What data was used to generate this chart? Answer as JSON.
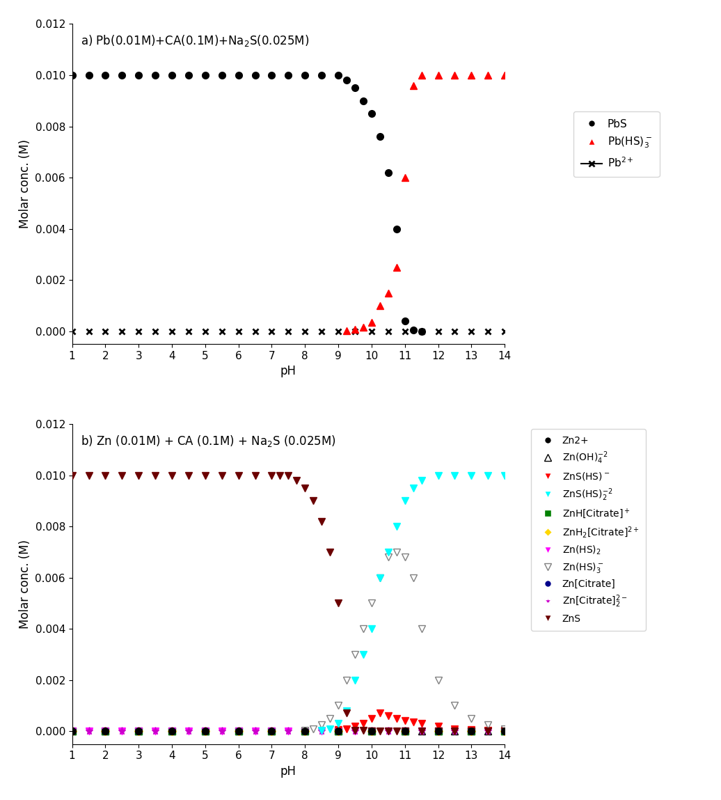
{
  "panel_a": {
    "PbS": {
      "ph": [
        1,
        1.5,
        2,
        2.5,
        3,
        3.5,
        4,
        4.5,
        5,
        5.5,
        6,
        6.5,
        7,
        7.5,
        8,
        8.5,
        9,
        9.25,
        9.5,
        9.75,
        10,
        10.25,
        10.5,
        10.75,
        11,
        11.25,
        11.5
      ],
      "val": [
        0.01,
        0.01,
        0.01,
        0.01,
        0.01,
        0.01,
        0.01,
        0.01,
        0.01,
        0.01,
        0.01,
        0.01,
        0.01,
        0.01,
        0.01,
        0.01,
        0.01,
        0.0098,
        0.0095,
        0.009,
        0.0085,
        0.0076,
        0.0062,
        0.004,
        0.0004,
        5e-05,
        0.0
      ]
    },
    "PbHS3": {
      "ph": [
        9.25,
        9.5,
        9.75,
        10,
        10.25,
        10.5,
        10.75,
        11,
        11.25,
        11.5,
        12,
        12.5,
        13,
        13.5,
        14
      ],
      "val": [
        3e-05,
        8e-05,
        0.00015,
        0.00035,
        0.001,
        0.0015,
        0.0025,
        0.006,
        0.0096,
        0.01,
        0.01,
        0.01,
        0.01,
        0.01,
        0.01
      ]
    },
    "Pb2": {
      "ph": [
        1,
        1.5,
        2,
        2.5,
        3,
        3.5,
        4,
        4.5,
        5,
        5.5,
        6,
        6.5,
        7,
        7.5,
        8,
        8.5,
        9,
        9.5,
        10,
        10.5,
        11,
        11.5,
        12,
        12.5,
        13,
        13.5,
        14
      ],
      "val": [
        0.0,
        0.0,
        0.0,
        0.0,
        0.0,
        0.0,
        0.0,
        0.0,
        0.0,
        0.0,
        0.0,
        0.0,
        0.0,
        0.0,
        0.0,
        0.0,
        0.0,
        0.0,
        0.0,
        0.0,
        0.0,
        0.0,
        0.0,
        0.0,
        0.0,
        0.0,
        0.0
      ]
    }
  },
  "panel_b": {
    "ZnS": {
      "ph": [
        1,
        1.5,
        2,
        2.5,
        3,
        3.5,
        4,
        4.5,
        5,
        5.5,
        6,
        6.5,
        7,
        7.25,
        7.5,
        7.75,
        8,
        8.25,
        8.5,
        8.75,
        9,
        9.25,
        9.5,
        9.75,
        10,
        10.25,
        10.5,
        10.75,
        11,
        11.5,
        12,
        12.5,
        13,
        13.5,
        14
      ],
      "val": [
        0.01,
        0.01,
        0.01,
        0.01,
        0.01,
        0.01,
        0.01,
        0.01,
        0.01,
        0.01,
        0.01,
        0.01,
        0.01,
        0.01,
        0.01,
        0.0098,
        0.0095,
        0.009,
        0.0082,
        0.007,
        0.005,
        0.0007,
        4e-05,
        2e-05,
        1e-05,
        1e-05,
        1e-05,
        1e-05,
        1e-05,
        1e-05,
        1e-05,
        1e-05,
        1e-05,
        1e-05,
        1e-05
      ]
    },
    "ZnSHS2": {
      "ph": [
        8.5,
        8.75,
        9,
        9.25,
        9.5,
        9.75,
        10,
        10.25,
        10.5,
        10.75,
        11,
        11.25,
        11.5,
        12,
        12.5,
        13,
        13.5,
        14
      ],
      "val": [
        2e-05,
        0.0001,
        0.0003,
        0.0008,
        0.002,
        0.003,
        0.004,
        0.006,
        0.007,
        0.008,
        0.009,
        0.0095,
        0.0098,
        0.01,
        0.01,
        0.01,
        0.01,
        0.01
      ]
    },
    "ZnSHS": {
      "ph": [
        9.0,
        9.25,
        9.5,
        9.75,
        10,
        10.25,
        10.5,
        10.75,
        11,
        11.25,
        11.5,
        12,
        12.5,
        13,
        13.5,
        14
      ],
      "val": [
        5e-05,
        0.0001,
        0.0002,
        0.0003,
        0.0005,
        0.0007,
        0.0006,
        0.0005,
        0.0004,
        0.00035,
        0.0003,
        0.0002,
        0.0001,
        5e-05,
        3e-05,
        2e-05
      ]
    },
    "ZnHS3": {
      "ph": [
        8.0,
        8.25,
        8.5,
        8.75,
        9,
        9.25,
        9.5,
        9.75,
        10,
        10.25,
        10.5,
        10.75,
        11,
        11.25,
        11.5,
        12,
        12.5,
        13,
        13.5,
        14
      ],
      "val": [
        2e-05,
        0.0001,
        0.00025,
        0.0005,
        0.001,
        0.002,
        0.003,
        0.004,
        0.005,
        0.006,
        0.0068,
        0.007,
        0.0068,
        0.006,
        0.004,
        0.002,
        0.001,
        0.0005,
        0.00025,
        0.0001
      ]
    },
    "ZnOH4": {
      "ph": [
        1,
        2,
        3,
        4,
        5,
        6,
        7,
        8,
        9,
        10,
        11,
        11.5,
        12,
        12.5,
        13,
        13.5,
        14
      ],
      "val": [
        0.0,
        0.0,
        0.0,
        0.0,
        0.0,
        0.0,
        0.0,
        0.0,
        0.0,
        0.0,
        0.0,
        0.0,
        0.0,
        0.0,
        0.0,
        0.0,
        0.0
      ]
    },
    "Zn2": {
      "ph": [
        1,
        2,
        3,
        4,
        5,
        6,
        7,
        8,
        9,
        10,
        11,
        12,
        13,
        14
      ],
      "val": [
        0.0,
        0.0,
        0.0,
        0.0,
        0.0,
        0.0,
        0.0,
        0.0,
        0.0,
        0.0,
        0.0,
        0.0,
        0.0,
        0.0
      ]
    },
    "ZnHCit": {
      "ph": [
        1,
        2,
        3,
        4,
        5,
        6,
        7,
        8,
        9,
        10,
        11,
        12,
        13,
        14
      ],
      "val": [
        0.0,
        0.0,
        0.0,
        0.0,
        0.0,
        0.0,
        0.0,
        0.0,
        0.0,
        0.0,
        0.0,
        0.0,
        0.0,
        0.0
      ]
    },
    "ZnH2Cit": {
      "ph": [
        1,
        2,
        3,
        4,
        5,
        6,
        7,
        8,
        9,
        10,
        11,
        12,
        13,
        14
      ],
      "val": [
        0.0,
        0.0,
        0.0,
        0.0,
        0.0,
        0.0,
        0.0,
        0.0,
        0.0,
        0.0,
        0.0,
        0.0,
        0.0,
        0.0
      ]
    },
    "ZnHS2": {
      "ph": [
        1,
        1.5,
        2,
        2.5,
        3,
        3.5,
        4,
        4.5,
        5,
        5.5,
        6,
        6.5,
        7,
        7.5,
        8,
        8.5,
        9,
        9.5,
        10,
        10.5,
        11,
        11.5,
        12,
        12.5,
        13,
        13.5,
        14
      ],
      "val": [
        0.0,
        0.0,
        0.0,
        0.0,
        0.0,
        0.0,
        0.0,
        0.0,
        0.0,
        0.0,
        0.0,
        0.0,
        0.0,
        0.0,
        0.0,
        0.0,
        0.0,
        0.0,
        0.0,
        0.0,
        0.0,
        0.0,
        0.0,
        0.0,
        0.0,
        0.0,
        0.0
      ]
    },
    "ZnCit": {
      "ph": [
        1,
        2,
        3,
        4,
        5,
        6,
        7,
        8,
        9,
        10,
        11,
        12,
        13,
        14
      ],
      "val": [
        0.0,
        0.0,
        0.0,
        0.0,
        0.0,
        0.0,
        0.0,
        0.0,
        0.0,
        0.0,
        0.0,
        0.0,
        0.0,
        0.0
      ]
    },
    "ZnCit2": {
      "ph": [
        1,
        1.5,
        2,
        2.5,
        3,
        3.5,
        4,
        4.5,
        5,
        5.5,
        6,
        6.5,
        7,
        7.5,
        8,
        8.5,
        9,
        9.5,
        10,
        10.5,
        11,
        11.5,
        12,
        12.5,
        13,
        13.5,
        14
      ],
      "val": [
        0.0,
        0.0,
        0.0,
        0.0,
        0.0,
        0.0,
        0.0,
        0.0,
        0.0,
        0.0,
        0.0,
        0.0,
        0.0,
        0.0,
        0.0,
        0.0,
        0.0,
        0.0,
        0.0,
        0.0,
        0.0,
        0.0,
        0.0,
        0.0,
        0.0,
        0.0,
        0.0
      ]
    }
  },
  "xlim": [
    1,
    14
  ],
  "ylim": [
    -0.0005,
    0.012
  ],
  "yticks": [
    0.0,
    0.002,
    0.004,
    0.006,
    0.008,
    0.01,
    0.012
  ],
  "xticks": [
    1,
    2,
    3,
    4,
    5,
    6,
    7,
    8,
    9,
    10,
    11,
    12,
    13,
    14
  ],
  "ylabel": "Molar conc. (M)",
  "xlabel": "pH"
}
